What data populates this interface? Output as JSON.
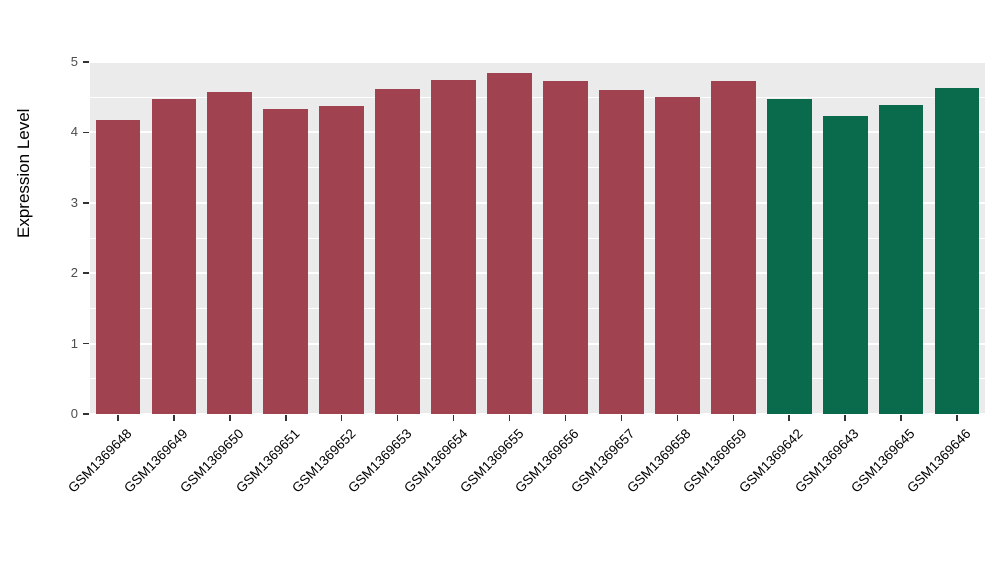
{
  "chart": {
    "colors": {
      "panel_bg": "#EBEBEB",
      "grid": "#FFFFFF",
      "group_red": "#A0424F",
      "group_green": "#0A6B4C",
      "axis_text": "#4D4D4D",
      "label_text": "#000000"
    }
  },
  "chart_data": {
    "type": "bar",
    "title": "",
    "xlabel": "",
    "ylabel": "Expression Level",
    "ylim": [
      0,
      5
    ],
    "yticks": [
      0,
      1,
      2,
      3,
      4,
      5
    ],
    "grid": true,
    "legend": false,
    "categories": [
      "GSM1369648",
      "GSM1369649",
      "GSM1369650",
      "GSM1369651",
      "GSM1369652",
      "GSM1369653",
      "GSM1369654",
      "GSM1369655",
      "GSM1369656",
      "GSM1369657",
      "GSM1369658",
      "GSM1369659",
      "GSM1369642",
      "GSM1369643",
      "GSM1369645",
      "GSM1369646"
    ],
    "values": [
      4.18,
      4.47,
      4.57,
      4.33,
      4.37,
      4.62,
      4.75,
      4.85,
      4.73,
      4.6,
      4.51,
      4.73,
      4.47,
      4.24,
      4.39,
      4.63
    ],
    "bar_colors": [
      "#A0424F",
      "#A0424F",
      "#A0424F",
      "#A0424F",
      "#A0424F",
      "#A0424F",
      "#A0424F",
      "#A0424F",
      "#A0424F",
      "#A0424F",
      "#A0424F",
      "#A0424F",
      "#0A6B4C",
      "#0A6B4C",
      "#0A6B4C",
      "#0A6B4C"
    ]
  }
}
